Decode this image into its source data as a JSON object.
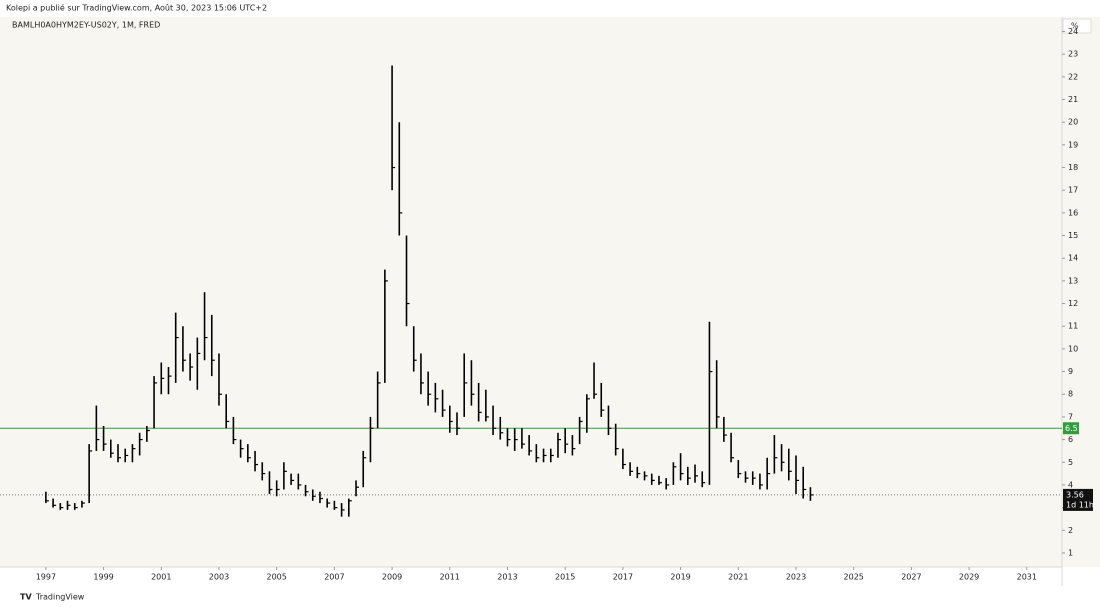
{
  "header": "Kolepi a publié sur TradingView.com, Août 30, 2023 15:06 UTC+2",
  "footer": "TradingView",
  "chart_data": {
    "type": "ohlc",
    "title": "BAMLH0A0HYM2EY-US02Y, 1M, FRED",
    "unit": "%",
    "color": "#000000",
    "x": [
      1997,
      1997.25,
      1997.5,
      1997.75,
      1998,
      1998.25,
      1998.5,
      1998.75,
      1999,
      1999.25,
      1999.5,
      1999.75,
      2000,
      2000.25,
      2000.5,
      2000.75,
      2001,
      2001.25,
      2001.5,
      2001.75,
      2002,
      2002.25,
      2002.5,
      2002.75,
      2003,
      2003.25,
      2003.5,
      2003.75,
      2004,
      2004.25,
      2004.5,
      2004.75,
      2005,
      2005.25,
      2005.5,
      2005.75,
      2006,
      2006.25,
      2006.5,
      2006.75,
      2007,
      2007.25,
      2007.5,
      2007.75,
      2008,
      2008.25,
      2008.5,
      2008.75,
      2009,
      2009.25,
      2009.5,
      2009.75,
      2010,
      2010.25,
      2010.5,
      2010.75,
      2011,
      2011.25,
      2011.5,
      2011.75,
      2012,
      2012.25,
      2012.5,
      2012.75,
      2013,
      2013.25,
      2013.5,
      2013.75,
      2014,
      2014.25,
      2014.5,
      2014.75,
      2015,
      2015.25,
      2015.5,
      2015.75,
      2016,
      2016.25,
      2016.5,
      2016.75,
      2017,
      2017.25,
      2017.5,
      2017.75,
      2018,
      2018.25,
      2018.5,
      2018.75,
      2019,
      2019.25,
      2019.5,
      2019.75,
      2020,
      2020.25,
      2020.5,
      2020.75,
      2021,
      2021.25,
      2021.5,
      2021.75,
      2022,
      2022.25,
      2022.5,
      2022.75,
      2023,
      2023.25,
      2023.5
    ],
    "high": [
      3.7,
      3.4,
      3.2,
      3.3,
      3.2,
      3.3,
      5.8,
      7.5,
      6.6,
      6.0,
      5.8,
      5.6,
      5.8,
      6.3,
      6.6,
      8.8,
      9.4,
      9.2,
      11.6,
      11.0,
      9.8,
      10.5,
      12.5,
      11.5,
      9.8,
      8.0,
      7.0,
      6.0,
      5.8,
      5.5,
      5.0,
      4.6,
      4.2,
      5.0,
      4.5,
      4.5,
      4.0,
      3.8,
      3.7,
      3.4,
      3.3,
      3.2,
      3.4,
      4.2,
      5.5,
      7.0,
      9.0,
      13.5,
      22.5,
      20.0,
      15.0,
      11.0,
      9.8,
      9.0,
      8.5,
      8.2,
      7.5,
      7.2,
      9.8,
      9.5,
      8.5,
      8.2,
      7.5,
      7.0,
      6.5,
      6.5,
      6.5,
      6.2,
      5.8,
      5.6,
      5.6,
      6.3,
      6.5,
      6.2,
      7.0,
      8.0,
      9.4,
      8.5,
      7.5,
      6.7,
      5.6,
      5.0,
      4.8,
      4.6,
      4.5,
      4.4,
      4.3,
      5.0,
      5.4,
      4.8,
      4.9,
      4.6,
      11.2,
      9.5,
      7.0,
      6.3,
      5.1,
      4.6,
      4.6,
      4.5,
      5.2,
      6.2,
      5.8,
      5.6,
      5.3,
      4.8,
      3.9
    ],
    "low": [
      3.2,
      3.0,
      2.9,
      2.9,
      2.9,
      3.0,
      3.2,
      5.5,
      5.5,
      5.2,
      5.0,
      5.0,
      5.0,
      5.3,
      5.9,
      6.5,
      8.0,
      8.0,
      8.5,
      9.0,
      8.6,
      8.2,
      9.5,
      8.8,
      7.5,
      6.5,
      5.8,
      5.2,
      5.0,
      4.6,
      4.2,
      3.6,
      3.5,
      3.8,
      4.0,
      3.8,
      3.5,
      3.3,
      3.2,
      3.0,
      2.9,
      2.6,
      2.6,
      3.5,
      3.9,
      5.0,
      6.5,
      8.5,
      17.0,
      15.0,
      11.0,
      9.0,
      8.0,
      7.5,
      7.2,
      7.0,
      6.3,
      6.2,
      7.0,
      7.5,
      6.8,
      6.8,
      6.2,
      6.0,
      5.7,
      5.5,
      5.6,
      5.3,
      5.0,
      5.0,
      5.0,
      5.2,
      5.4,
      5.3,
      5.8,
      6.3,
      7.8,
      7.0,
      6.2,
      5.3,
      4.7,
      4.4,
      4.3,
      4.2,
      4.0,
      4.0,
      3.8,
      4.0,
      4.2,
      4.0,
      4.1,
      3.9,
      4.0,
      6.5,
      5.9,
      5.0,
      4.3,
      4.1,
      4.0,
      3.8,
      3.8,
      4.5,
      4.6,
      4.2,
      3.6,
      3.4,
      3.3
    ],
    "close": [
      3.3,
      3.1,
      3.0,
      3.1,
      3.0,
      3.2,
      5.5,
      6.0,
      5.8,
      5.4,
      5.2,
      5.3,
      5.6,
      6.0,
      6.4,
      8.5,
      8.7,
      8.8,
      10.5,
      9.5,
      9.2,
      9.8,
      10.5,
      9.5,
      8.0,
      6.8,
      6.0,
      5.6,
      5.2,
      4.9,
      4.5,
      3.8,
      3.8,
      4.6,
      4.2,
      4.0,
      3.7,
      3.5,
      3.4,
      3.2,
      3.0,
      2.9,
      3.3,
      3.9,
      5.2,
      6.5,
      8.5,
      13.0,
      18.0,
      16.0,
      12.0,
      9.5,
      8.5,
      8.0,
      7.8,
      7.3,
      6.8,
      6.5,
      8.5,
      8.0,
      7.2,
      7.0,
      6.5,
      6.3,
      6.0,
      6.0,
      5.8,
      5.5,
      5.2,
      5.3,
      5.3,
      6.0,
      5.8,
      5.6,
      6.8,
      7.8,
      8.0,
      7.3,
      6.5,
      5.6,
      4.9,
      4.6,
      4.5,
      4.4,
      4.2,
      4.1,
      4.0,
      4.8,
      4.5,
      4.3,
      4.4,
      4.1,
      9.0,
      7.0,
      6.2,
      5.2,
      4.5,
      4.3,
      4.3,
      4.0,
      4.5,
      5.2,
      5.0,
      4.6,
      4.2,
      3.8,
      3.56
    ],
    "xlim": [
      1995.41,
      2032.22
    ],
    "xticks": [
      1997,
      1999,
      2001,
      2003,
      2005,
      2007,
      2009,
      2011,
      2013,
      2015,
      2017,
      2019,
      2021,
      2023,
      2025,
      2027,
      2029,
      2031
    ],
    "ylim": [
      0.38,
      24.64
    ],
    "yticks": [
      1,
      2,
      3,
      4,
      5,
      6,
      7,
      8,
      9,
      10,
      11,
      12,
      13,
      14,
      15,
      16,
      17,
      18,
      19,
      20,
      21,
      22,
      23,
      24
    ],
    "hline": {
      "value": 6.5,
      "color": "#2e9e3e"
    },
    "last_price": 3.56,
    "countdown": "1d 11h"
  }
}
